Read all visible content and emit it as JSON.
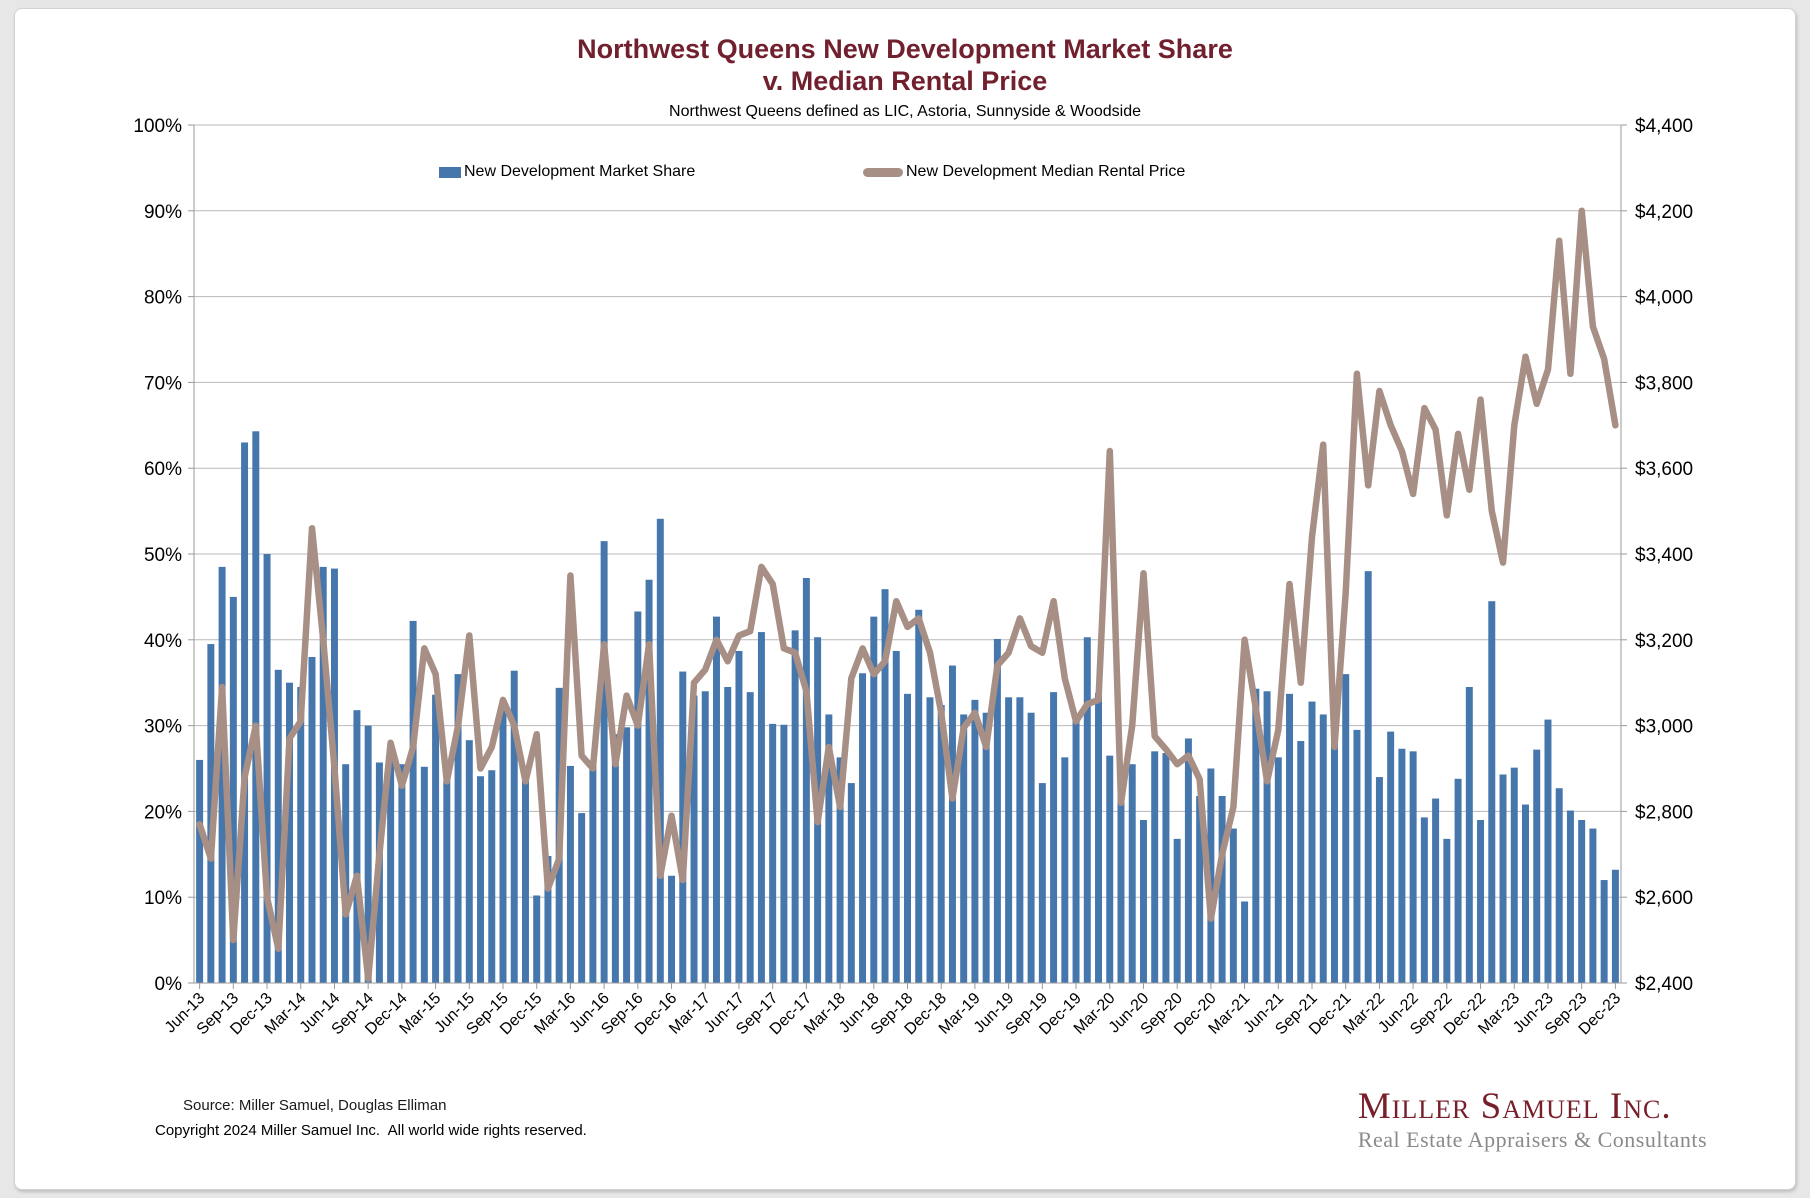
{
  "page": {
    "background": "#e7e7e7",
    "panel_background": "#ffffff",
    "accent_color": "#71202E"
  },
  "header": {
    "title_line1": "Northwest Queens New Development Market Share",
    "title_line2": "v. Median Rental Price",
    "subtitle": "Northwest Queens defined as LIC, Astoria, Sunnyside & Woodside"
  },
  "legend": {
    "bar_label": "New Development Market Share",
    "line_label": "New Development Median Rental Price"
  },
  "chart_data": {
    "type": "bar",
    "combo": "bar+line",
    "title": "Northwest Queens New Development Market Share v. Median Rental Price",
    "subtitle": "Northwest Queens defined as LIC, Astoria, Sunnyside & Woodside",
    "x_start": "Jun-13",
    "x_end": "Dec-23",
    "x_frequency": "monthly",
    "x_tick_labels": [
      "Jun-13",
      "Sep-13",
      "Dec-13",
      "Mar-14",
      "Jun-14",
      "Sep-14",
      "Dec-14",
      "Mar-15",
      "Jun-15",
      "Sep-15",
      "Dec-15",
      "Mar-16",
      "Jun-16",
      "Sep-16",
      "Dec-16",
      "Mar-17",
      "Jun-17",
      "Sep-17",
      "Dec-17",
      "Mar-18",
      "Jun-18",
      "Sep-18",
      "Dec-18",
      "Mar-19",
      "Jun-19",
      "Sep-19",
      "Dec-19",
      "Mar-20",
      "Jun-20",
      "Sep-20",
      "Dec-20",
      "Mar-21",
      "Jun-21",
      "Sep-21",
      "Dec-21",
      "Mar-22",
      "Jun-22",
      "Sep-22",
      "Dec-22",
      "Mar-23",
      "Jun-23",
      "Sep-23",
      "Dec-23"
    ],
    "x_label_interval_months": 3,
    "y_left": {
      "min": 0,
      "max": 100,
      "step": 10,
      "format": "percent"
    },
    "y_right": {
      "min": 2400,
      "max": 4400,
      "step": 200,
      "format": "dollar"
    },
    "grid": "horizontal",
    "legend_position": "top-inside",
    "series": [
      {
        "name": "New Development Market Share",
        "type": "bar",
        "axis": "left",
        "unit": "percent",
        "color": "#4576AC",
        "values": [
          26,
          39.5,
          48.5,
          45,
          63,
          64.3,
          50,
          36.5,
          35,
          34.5,
          38,
          48.5,
          48.3,
          25.5,
          31.8,
          30,
          25.7,
          26.5,
          25.5,
          42.2,
          25.2,
          33.6,
          23.6,
          36,
          28.3,
          24.1,
          24.8,
          32.6,
          36.4,
          24.7,
          10.2,
          14.8,
          34.4,
          25.3,
          19.8,
          25.8,
          51.5,
          29,
          29.8,
          43.3,
          47,
          54.1,
          12.5,
          36.3,
          33.5,
          34,
          42.7,
          34.5,
          38.7,
          33.9,
          40.9,
          30.2,
          30.1,
          41.1,
          47.2,
          40.3,
          31.3,
          26.3,
          23.3,
          36.1,
          42.7,
          45.9,
          38.7,
          33.7,
          43.5,
          33.3,
          32.4,
          37,
          31.3,
          33,
          31.5,
          40.1,
          33.3,
          33.3,
          31.5,
          23.3,
          33.9,
          26.3,
          30.8,
          40.3,
          33.8,
          26.5,
          23.2,
          25.5,
          19,
          27,
          26.8,
          16.8,
          28.5,
          21.8,
          25,
          21.8,
          18,
          9.5,
          34.3,
          34,
          26.3,
          33.7,
          28.2,
          32.8,
          31.3,
          31.8,
          36,
          29.5,
          48,
          24,
          29.3,
          27.3,
          27,
          19.3,
          21.5,
          16.8,
          23.8,
          34.5,
          19,
          44.5,
          24.3,
          25.1,
          20.8,
          27.2,
          30.7,
          22.7,
          20.1,
          19,
          18,
          12,
          13.2
        ]
      },
      {
        "name": "New Development Median Rental Price",
        "type": "line",
        "axis": "right",
        "unit": "USD",
        "color": "#A78F85",
        "values": [
          2770,
          2690,
          3090,
          2500,
          2880,
          3000,
          2600,
          2480,
          2970,
          3010,
          3460,
          3200,
          2900,
          2560,
          2650,
          2410,
          2700,
          2960,
          2860,
          2950,
          3180,
          3120,
          2870,
          3000,
          3210,
          2900,
          2950,
          3060,
          3000,
          2870,
          2980,
          2620,
          2690,
          3350,
          2930,
          2900,
          3190,
          2910,
          3070,
          3000,
          3190,
          2650,
          2790,
          2640,
          3100,
          3130,
          3200,
          3150,
          3210,
          3220,
          3370,
          3330,
          3180,
          3170,
          3080,
          2775,
          2950,
          2810,
          3110,
          3180,
          3120,
          3150,
          3290,
          3230,
          3250,
          3170,
          3030,
          2830,
          2995,
          3030,
          2950,
          3140,
          3170,
          3250,
          3185,
          3170,
          3290,
          3110,
          3010,
          3050,
          3060,
          3640,
          2820,
          3000,
          3355,
          2975,
          2945,
          2910,
          2930,
          2875,
          2550,
          2700,
          2810,
          3200,
          3040,
          2870,
          2990,
          3330,
          3100,
          3440,
          3655,
          2950,
          3310,
          3820,
          3560,
          3780,
          3700,
          3640,
          3540,
          3740,
          3690,
          3490,
          3680,
          3550,
          3760,
          3500,
          3380,
          3700,
          3860,
          3750,
          3830,
          4130,
          3820,
          4200,
          3930,
          3855,
          3700
        ]
      }
    ]
  },
  "footer": {
    "source": "Source: Miller Samuel, Douglas Elliman",
    "copyright": "Copyright 2024 Miller Samuel Inc.  All world wide rights reserved."
  },
  "logo": {
    "name": "Miller Samuel Inc.",
    "tagline": "Real Estate Appraisers & Consultants"
  }
}
